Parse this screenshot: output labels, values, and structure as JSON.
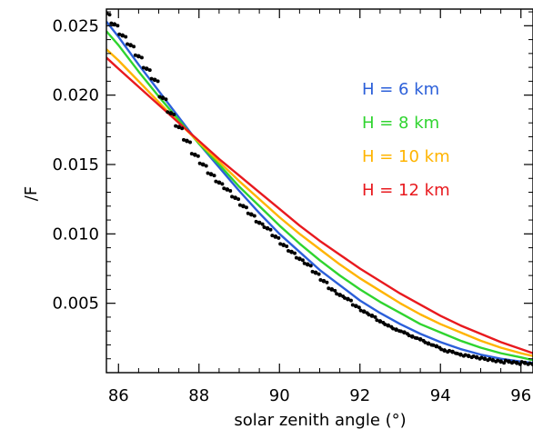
{
  "chart_data": {
    "type": "line",
    "title": "",
    "xlabel": "solar zenith angle (°)",
    "ylabel": "/F",
    "xlim": [
      85.7,
      96.3
    ],
    "ylim": [
      0.0,
      0.0262
    ],
    "grid": false,
    "legend_position": "upper-right",
    "x_ticks": [
      86,
      88,
      90,
      92,
      94,
      96
    ],
    "x_tick_labels": [
      "86",
      "88",
      "90",
      "92",
      "94",
      "96"
    ],
    "y_ticks": [
      0.005,
      0.01,
      0.015,
      0.02,
      0.025
    ],
    "y_tick_labels": [
      "0.005",
      "0.010",
      "0.015",
      "0.020",
      "0.025"
    ],
    "series": [
      {
        "name": "H = 6 km",
        "color": "#2b5fd9",
        "x": [
          85.7,
          86,
          86.5,
          87,
          87.5,
          88,
          88.5,
          89,
          89.5,
          90,
          90.5,
          91,
          91.5,
          92,
          92.5,
          93,
          93.5,
          94,
          94.5,
          95,
          95.5,
          96,
          96.3
        ],
        "y": [
          0.0253,
          0.0242,
          0.0222,
          0.0203,
          0.0184,
          0.0165,
          0.0148,
          0.0131,
          0.0115,
          0.01,
          0.0087,
          0.0074,
          0.0063,
          0.0052,
          0.0043,
          0.0035,
          0.0028,
          0.0022,
          0.0017,
          0.0013,
          0.001,
          0.0008,
          0.0007
        ]
      },
      {
        "name": "H = 8 km",
        "color": "#2fd42f",
        "x": [
          85.7,
          86,
          86.5,
          87,
          87.5,
          88,
          88.5,
          89,
          89.5,
          90,
          90.5,
          91,
          91.5,
          92,
          92.5,
          93,
          93.5,
          94,
          94.5,
          95,
          95.5,
          96,
          96.3
        ],
        "y": [
          0.0246,
          0.0236,
          0.0217,
          0.0199,
          0.0182,
          0.0165,
          0.015,
          0.0134,
          0.012,
          0.0106,
          0.0093,
          0.0081,
          0.007,
          0.006,
          0.0051,
          0.0043,
          0.0035,
          0.0029,
          0.0023,
          0.0018,
          0.0014,
          0.0011,
          0.0009
        ]
      },
      {
        "name": "H = 10 km",
        "color": "#ffb400",
        "x": [
          85.7,
          86,
          86.5,
          87,
          87.5,
          88,
          88.5,
          89,
          89.5,
          90,
          90.5,
          91,
          91.5,
          92,
          92.5,
          93,
          93.5,
          94,
          94.5,
          95,
          95.5,
          96,
          96.3
        ],
        "y": [
          0.0233,
          0.0225,
          0.021,
          0.0195,
          0.018,
          0.0166,
          0.0152,
          0.0138,
          0.0125,
          0.0112,
          0.01,
          0.0089,
          0.0078,
          0.0068,
          0.0059,
          0.005,
          0.0042,
          0.0035,
          0.0029,
          0.0023,
          0.0018,
          0.0014,
          0.0012
        ]
      },
      {
        "name": "H = 12 km",
        "color": "#e8191e",
        "x": [
          85.7,
          86,
          86.5,
          87,
          87.5,
          88,
          88.5,
          89,
          89.5,
          90,
          90.5,
          91,
          91.5,
          92,
          92.5,
          93,
          93.5,
          94,
          94.5,
          95,
          95.5,
          96,
          96.3
        ],
        "y": [
          0.0227,
          0.0219,
          0.0206,
          0.0193,
          0.018,
          0.0167,
          0.0154,
          0.0142,
          0.013,
          0.0118,
          0.0106,
          0.0095,
          0.0085,
          0.0075,
          0.0066,
          0.0057,
          0.0049,
          0.0041,
          0.0034,
          0.0028,
          0.0022,
          0.0017,
          0.0014
        ]
      },
      {
        "name": "",
        "color": "#000000",
        "style": "points",
        "x": [
          85.7,
          85.9,
          86.1,
          86.3,
          86.5,
          86.7,
          86.9,
          87.1,
          87.3,
          87.5,
          87.7,
          87.9,
          88.1,
          88.3,
          88.5,
          88.7,
          88.9,
          89.1,
          89.3,
          89.5,
          89.7,
          89.9,
          90.1,
          90.3,
          90.5,
          90.7,
          90.9,
          91.1,
          91.3,
          91.5,
          91.7,
          91.9,
          92.1,
          92.3,
          92.5,
          92.7,
          92.9,
          93.1,
          93.3,
          93.5,
          93.7,
          93.9,
          94.1,
          94.3,
          94.5,
          94.7,
          94.9,
          95.1,
          95.3,
          95.5,
          95.7,
          95.9,
          96.1,
          96.3
        ],
        "y": [
          0.0259,
          0.0251,
          0.0243,
          0.0236,
          0.0228,
          0.0219,
          0.0211,
          0.0198,
          0.0187,
          0.0177,
          0.0167,
          0.0157,
          0.015,
          0.0143,
          0.0137,
          0.0132,
          0.0126,
          0.012,
          0.0114,
          0.0108,
          0.0104,
          0.0098,
          0.0092,
          0.0087,
          0.0082,
          0.0078,
          0.0072,
          0.0066,
          0.006,
          0.0056,
          0.0053,
          0.0048,
          0.0044,
          0.0041,
          0.0037,
          0.0034,
          0.0031,
          0.0029,
          0.0026,
          0.0024,
          0.0021,
          0.0019,
          0.0016,
          0.0015,
          0.0013,
          0.0012,
          0.0011,
          0.001,
          0.0009,
          0.0008,
          0.0008,
          0.0007,
          0.0007,
          0.0006
        ]
      }
    ]
  }
}
